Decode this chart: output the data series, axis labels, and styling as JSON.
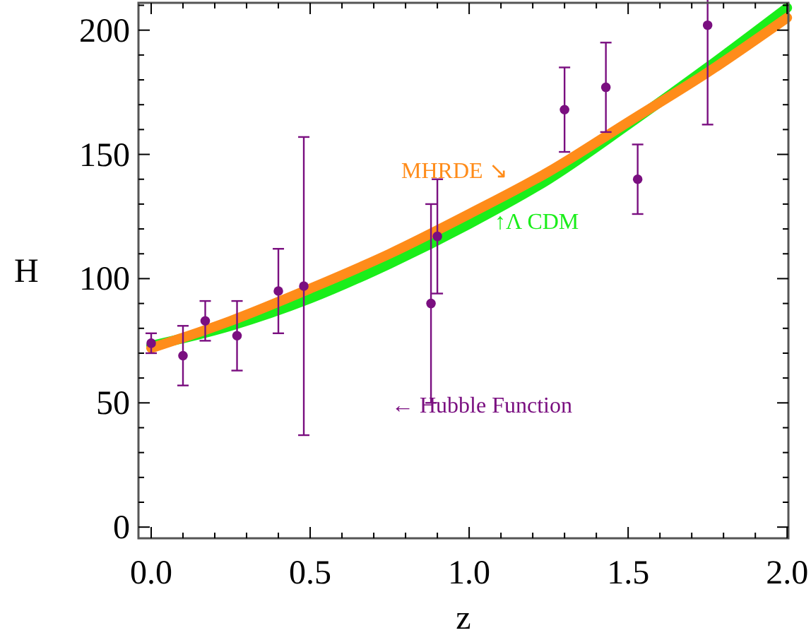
{
  "chart_data": {
    "type": "line",
    "xlabel": "z",
    "ylabel": "H",
    "xlim": [
      -0.04,
      2.004
    ],
    "ylim": [
      -4.5,
      211
    ],
    "xticks": [
      {
        "value": 0,
        "label": "0.0"
      },
      {
        "value": 0.1,
        "label": null
      },
      {
        "value": 0.2,
        "label": null
      },
      {
        "value": 0.3,
        "label": null
      },
      {
        "value": 0.4,
        "label": null
      },
      {
        "value": 0.5,
        "label": "0.5"
      },
      {
        "value": 0.6,
        "label": null
      },
      {
        "value": 0.7,
        "label": null
      },
      {
        "value": 0.8,
        "label": null
      },
      {
        "value": 0.9,
        "label": null
      },
      {
        "value": 1,
        "label": "1.0"
      },
      {
        "value": 1.1,
        "label": null
      },
      {
        "value": 1.2,
        "label": null
      },
      {
        "value": 1.3,
        "label": null
      },
      {
        "value": 1.4,
        "label": null
      },
      {
        "value": 1.5,
        "label": "1.5"
      },
      {
        "value": 1.6,
        "label": null
      },
      {
        "value": 1.7,
        "label": null
      },
      {
        "value": 1.8,
        "label": null
      },
      {
        "value": 1.9,
        "label": null
      },
      {
        "value": 2,
        "label": "2.0"
      }
    ],
    "yticks": [
      0,
      {
        "value": 10,
        "label": null
      },
      {
        "value": 20,
        "label": null
      },
      {
        "value": 30,
        "label": null
      },
      {
        "value": 40,
        "label": null
      },
      50,
      {
        "value": 60,
        "label": null
      },
      {
        "value": 70,
        "label": null
      },
      {
        "value": 80,
        "label": null
      },
      {
        "value": 90,
        "label": null
      },
      100,
      {
        "value": 110,
        "label": null
      },
      {
        "value": 120,
        "label": null
      },
      {
        "value": 130,
        "label": null
      },
      {
        "value": 140,
        "label": null
      },
      150,
      {
        "value": 160,
        "label": null
      },
      {
        "value": 170,
        "label": null
      },
      {
        "value": 180,
        "label": null
      },
      {
        "value": 190,
        "label": null
      },
      200,
      {
        "value": 210,
        "label": null
      }
    ],
    "grid": false,
    "line_style": "solid",
    "series": [
      {
        "color": "#ff8c1a",
        "x": [
          0,
          0.25,
          0.5,
          0.75,
          1,
          1.25,
          1.5,
          1.75,
          2
        ],
        "values": [
          72,
          83,
          96,
          110,
          126,
          143,
          163,
          183,
          205
        ]
      },
      {
        "color": "#1aee1a",
        "x": [
          0,
          0.25,
          0.5,
          0.75,
          1,
          1.25,
          1.5,
          1.75,
          2
        ],
        "values": [
          73,
          81,
          92,
          106,
          122,
          140,
          162,
          185,
          209
        ]
      },
      {
        "type": "scatter",
        "marker": "circle",
        "color": "#7a0f80",
        "x": [
          0,
          0.1,
          0.17,
          0.27,
          0.4,
          0.48,
          0.88,
          0.9,
          1.3,
          1.43,
          1.53,
          1.75
        ],
        "values": [
          74,
          69,
          83,
          77,
          95,
          97,
          90,
          117,
          168,
          177,
          140,
          202
        ],
        "errors": [
          4,
          12,
          8,
          14,
          17,
          60,
          40,
          23,
          17,
          18,
          14,
          40
        ]
      }
    ],
    "annotations": [
      "MHRDE ↘",
      "↑Λ CDM",
      "← Hubble Function"
    ]
  }
}
